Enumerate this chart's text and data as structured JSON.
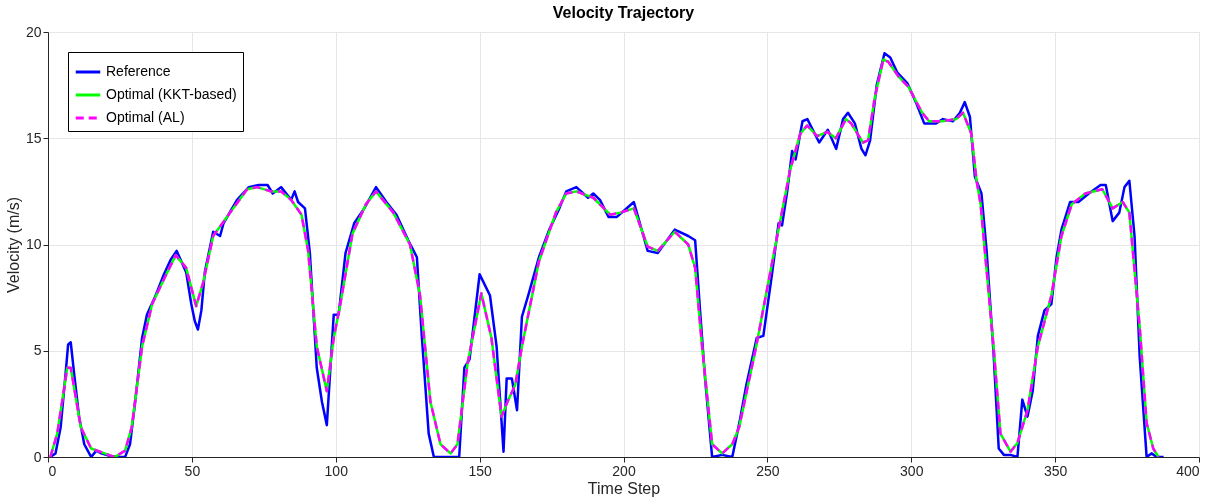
{
  "chart_data": {
    "type": "line",
    "title": "Velocity Trajectory",
    "xlabel": "Time Step",
    "ylabel": "Velocity (m/s)",
    "xlim": [
      0,
      400
    ],
    "xticks": [
      0,
      50,
      100,
      150,
      200,
      250,
      300,
      350,
      400
    ],
    "ylim": [
      0,
      20
    ],
    "yticks": [
      0,
      5,
      10,
      15,
      20
    ],
    "grid": true,
    "legend": "top left",
    "series": [
      {
        "name": "Reference",
        "color": "#0000ff",
        "line_style": "solid",
        "x": [
          0.8,
          2.6,
          4.4,
          6.1,
          7.0,
          7.9,
          9.1,
          10.8,
          12.6,
          13.8,
          15.0,
          16.8,
          18.5,
          22.0,
          24.4,
          26.8,
          28.5,
          30.3,
          32.7,
          34.4,
          37.4,
          40.3,
          42.7,
          44.7,
          48.0,
          49.8,
          51.0,
          52.1,
          53.3,
          54.5,
          57.4,
          59.8,
          61.0,
          65.7,
          69.8,
          73.3,
          76.3,
          78.1,
          81.0,
          84.5,
          85.7,
          86.9,
          89.3,
          91.0,
          93.4,
          95.2,
          96.9,
          99.3,
          101.0,
          103.4,
          106.4,
          109.9,
          114.0,
          117.6,
          121.1,
          125.2,
          128.2,
          129.9,
          132.3,
          134.1,
          138.8,
          142.9,
          144.7,
          146.5,
          150.0,
          151.8,
          153.6,
          155.9,
          158.3,
          159.4,
          161.2,
          163.0,
          164.7,
          167.1,
          170.6,
          174.2,
          177.7,
          180.1,
          183.6,
          187.7,
          189.5,
          191.8,
          194.8,
          197.7,
          203.6,
          208.4,
          211.9,
          217.8,
          222.5,
          224.9,
          226.6,
          228.4,
          230.8,
          234.3,
          237.8,
          240.4,
          242.7,
          246.3,
          248.6,
          251.6,
          253.9,
          255.1,
          256.9,
          258.6,
          259.8,
          262.2,
          263.9,
          268.0,
          271.0,
          273.9,
          276.3,
          278.0,
          280.4,
          282.7,
          284.1,
          285.7,
          288.0,
          290.7,
          292.7,
          295.1,
          298.6,
          301.6,
          304.5,
          308.6,
          311.0,
          314.5,
          316.9,
          318.6,
          320.4,
          322.1,
          324.4,
          326.2,
          328.6,
          330.4,
          332.2,
          334.5,
          336.9,
          338.6,
          340.4,
          342.2,
          344.0,
          346.3,
          348.7,
          350.5,
          352.2,
          355.2,
          358.1,
          361.7,
          365.8,
          367.6,
          370.0,
          372.3,
          374.1,
          375.8,
          377.6,
          379.4,
          381.8,
          383.5,
          385.3,
          387.7
        ],
        "values": [
          0,
          0.17,
          1.4,
          3.9,
          5.3,
          5.4,
          3.9,
          1.9,
          0.6,
          0.3,
          0,
          0.3,
          0.17,
          0.03,
          0,
          0,
          0.6,
          2.6,
          5.6,
          6.7,
          7.6,
          8.6,
          9.3,
          9.7,
          8.7,
          7.2,
          6.4,
          6.0,
          6.9,
          8.7,
          10.6,
          10.4,
          11.0,
          12.1,
          12.7,
          12.8,
          12.8,
          12.4,
          12.7,
          12.1,
          12.5,
          12.0,
          11.7,
          9.6,
          4.2,
          2.6,
          1.5,
          6.7,
          6.7,
          9.6,
          11.0,
          11.7,
          12.7,
          12.0,
          11.4,
          10.2,
          9.4,
          5.7,
          1.1,
          0,
          0,
          0,
          4.2,
          4.6,
          8.6,
          8.1,
          7.6,
          5.2,
          0.25,
          3.7,
          3.7,
          2.2,
          6.6,
          7.7,
          9.4,
          10.7,
          11.7,
          12.5,
          12.7,
          12.2,
          12.4,
          12.1,
          11.3,
          11.3,
          12.0,
          9.7,
          9.6,
          10.7,
          10.4,
          10.2,
          6.9,
          3.6,
          0,
          0.1,
          0,
          1.7,
          3.4,
          5.6,
          5.7,
          8.6,
          11.0,
          10.9,
          12.5,
          14.4,
          14.0,
          15.8,
          15.9,
          14.8,
          15.4,
          14.5,
          15.9,
          16.2,
          15.7,
          14.5,
          14.2,
          14.9,
          17.5,
          19.0,
          18.8,
          18.1,
          17.6,
          16.7,
          15.7,
          15.7,
          15.9,
          15.8,
          16.2,
          16.7,
          16.0,
          13.2,
          12.4,
          9.7,
          4.9,
          0.4,
          0.1,
          0.1,
          0,
          2.7,
          1.9,
          3.1,
          5.7,
          6.9,
          7.2,
          9.4,
          10.7,
          12.0,
          12.0,
          12.4,
          12.8,
          12.8,
          11.1,
          11.5,
          12.7,
          13.0,
          10.4,
          4.7,
          0,
          0.17,
          0,
          0
        ]
      },
      {
        "name": "Optimal (KKT-based)",
        "color": "#00ff00",
        "line_style": "solid",
        "x": [
          0.8,
          3.2,
          6.7,
          7.9,
          11.4,
          15.0,
          19.7,
          23.2,
          26.8,
          29.1,
          32.7,
          36.2,
          39.7,
          44.4,
          48.0,
          51.5,
          53.9,
          57.4,
          63.3,
          69.2,
          72.7,
          77.4,
          81.0,
          84.5,
          88.1,
          90.4,
          93.4,
          96.9,
          99.3,
          101.6,
          105.8,
          110.5,
          114.0,
          120.0,
          125.8,
          129.3,
          132.9,
          136.4,
          139.9,
          142.3,
          145.8,
          150.6,
          154.1,
          157.6,
          160.0,
          162.4,
          164.7,
          170.6,
          176.5,
          180.1,
          183.6,
          189.5,
          195.4,
          198.9,
          203.6,
          208.4,
          211.9,
          217.8,
          222.5,
          224.9,
          227.3,
          230.8,
          234.3,
          237.8,
          240.2,
          246.1,
          252.0,
          257.9,
          261.4,
          263.8,
          267.3,
          270.8,
          273.8,
          277.3,
          279.1,
          283.2,
          285.0,
          287.3,
          290.3,
          292.0,
          295.6,
          299.1,
          303.8,
          306.2,
          310.9,
          315.6,
          318.0,
          320.9,
          322.7,
          324.1,
          328.6,
          331.0,
          334.5,
          336.9,
          340.4,
          344.0,
          348.7,
          352.2,
          355.8,
          360.5,
          366.4,
          370.0,
          373.5,
          375.8,
          379.4,
          381.8,
          384.1,
          385.9
        ],
        "values": [
          0,
          1.1,
          4.2,
          4.2,
          1.4,
          0.4,
          0.17,
          0,
          0.3,
          1.4,
          5.2,
          7.2,
          8.2,
          9.5,
          8.9,
          7.1,
          8.2,
          10.4,
          11.5,
          12.6,
          12.7,
          12.5,
          12.5,
          12.1,
          11.4,
          9.7,
          5.2,
          3.1,
          5.6,
          7.2,
          10.5,
          11.9,
          12.5,
          11.5,
          10.0,
          7.6,
          2.6,
          0.6,
          0.17,
          0.6,
          4.4,
          7.7,
          5.6,
          1.9,
          2.7,
          3.4,
          5.2,
          9.2,
          11.5,
          12.4,
          12.5,
          12.2,
          11.4,
          11.5,
          11.7,
          9.9,
          9.7,
          10.6,
          10.0,
          8.9,
          5.2,
          0.6,
          0.17,
          0.6,
          1.4,
          5.2,
          9.4,
          13.5,
          15.2,
          15.6,
          15.1,
          15.3,
          15.0,
          15.9,
          15.7,
          14.8,
          14.9,
          16.9,
          18.7,
          18.6,
          17.9,
          17.4,
          16.2,
          15.8,
          15.8,
          15.9,
          16.2,
          15.2,
          13.0,
          11.9,
          5.2,
          1.1,
          0.25,
          0.66,
          2.2,
          5.2,
          7.6,
          10.4,
          11.9,
          12.4,
          12.6,
          11.7,
          12.0,
          11.5,
          6.1,
          1.6,
          0.4,
          0
        ]
      },
      {
        "name": "Optimal (AL)",
        "color": "#ff00ff",
        "line_style": "dashed",
        "x": [
          0.8,
          3.2,
          6.7,
          7.9,
          11.4,
          15.0,
          19.7,
          23.2,
          26.8,
          29.1,
          32.7,
          36.2,
          39.7,
          44.4,
          48.0,
          51.5,
          53.9,
          57.4,
          63.3,
          69.2,
          72.7,
          77.4,
          81.0,
          84.5,
          88.1,
          90.4,
          93.4,
          96.9,
          99.3,
          101.6,
          105.8,
          110.5,
          114.0,
          120.0,
          125.8,
          129.3,
          132.9,
          136.4,
          139.9,
          142.3,
          145.8,
          150.6,
          154.1,
          157.6,
          160.0,
          162.4,
          164.7,
          170.6,
          176.5,
          180.1,
          183.6,
          189.5,
          195.4,
          198.9,
          203.6,
          208.4,
          211.9,
          217.8,
          222.5,
          224.9,
          227.3,
          230.8,
          234.3,
          237.8,
          240.2,
          246.1,
          252.0,
          257.9,
          261.4,
          263.8,
          267.3,
          270.8,
          273.8,
          277.3,
          279.1,
          283.2,
          285.0,
          287.3,
          290.3,
          292.0,
          295.6,
          299.1,
          303.8,
          306.2,
          310.9,
          315.6,
          318.0,
          320.9,
          322.7,
          324.1,
          328.6,
          331.0,
          334.5,
          336.9,
          340.4,
          344.0,
          348.7,
          352.2,
          355.8,
          360.5,
          366.4,
          370.0,
          373.5,
          375.8,
          379.4,
          381.8,
          384.1,
          385.9
        ],
        "values": [
          0,
          1.1,
          4.2,
          4.2,
          1.4,
          0.4,
          0.17,
          0,
          0.3,
          1.4,
          5.2,
          7.2,
          8.2,
          9.5,
          8.9,
          7.1,
          8.2,
          10.4,
          11.5,
          12.6,
          12.7,
          12.5,
          12.5,
          12.1,
          11.4,
          9.7,
          5.2,
          3.1,
          5.6,
          7.2,
          10.5,
          11.9,
          12.5,
          11.5,
          10.0,
          7.6,
          2.6,
          0.6,
          0.17,
          0.6,
          4.4,
          7.7,
          5.6,
          1.9,
          2.7,
          3.4,
          5.2,
          9.2,
          11.5,
          12.4,
          12.5,
          12.2,
          11.4,
          11.5,
          11.7,
          9.9,
          9.7,
          10.6,
          10.0,
          8.9,
          5.2,
          0.6,
          0.17,
          0.6,
          1.4,
          5.2,
          9.4,
          13.5,
          15.2,
          15.6,
          15.1,
          15.3,
          15.0,
          15.9,
          15.7,
          14.8,
          14.9,
          16.9,
          18.7,
          18.6,
          17.9,
          17.4,
          16.2,
          15.8,
          15.8,
          15.9,
          16.2,
          15.2,
          13.0,
          11.9,
          5.2,
          1.1,
          0.25,
          0.66,
          2.2,
          5.2,
          7.6,
          10.4,
          11.9,
          12.4,
          12.6,
          11.7,
          12.0,
          11.5,
          6.1,
          1.6,
          0.4,
          0
        ]
      }
    ]
  }
}
